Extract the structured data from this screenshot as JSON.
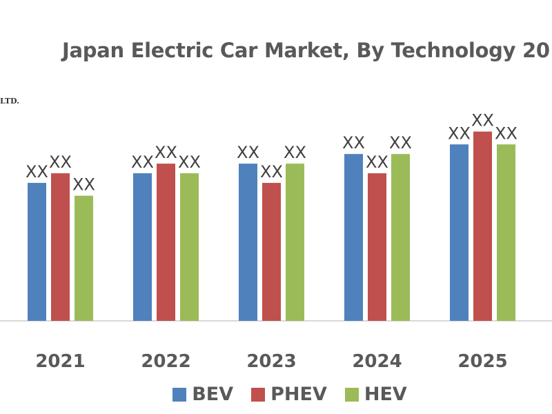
{
  "chart_data": {
    "type": "bar",
    "title": "Japan Electric Car Market, By Technology 20",
    "xlabel": "",
    "ylabel": "",
    "categories": [
      "2021",
      "2022",
      "2023",
      "2024",
      "2025"
    ],
    "series": [
      {
        "name": "BEV",
        "color": "#4f81bd",
        "values": [
          43,
          46,
          49,
          52,
          55
        ],
        "labels": [
          "XX",
          "XX",
          "XX",
          "XX",
          "XX"
        ]
      },
      {
        "name": "PHEV",
        "color": "#c0504d",
        "values": [
          46,
          49,
          43,
          46,
          59
        ],
        "labels": [
          "XX",
          "XX",
          "XX",
          "XX",
          "XX"
        ]
      },
      {
        "name": "HEV",
        "color": "#9bbb59",
        "values": [
          39,
          46,
          49,
          52,
          55
        ],
        "labels": [
          "XX",
          "XX",
          "XX",
          "XX",
          "XX"
        ]
      }
    ],
    "ylim": [
      0,
      100
    ],
    "grid": false,
    "legend": "bottom"
  },
  "corner_note": "LTD."
}
